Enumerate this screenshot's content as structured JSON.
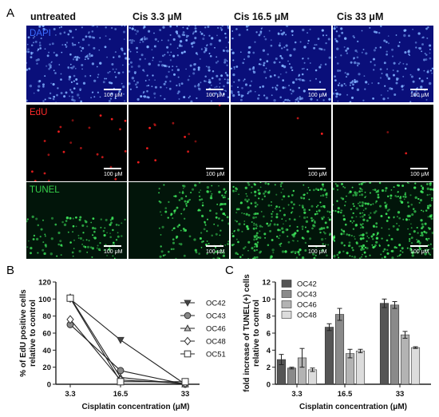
{
  "panel_labels": {
    "a": "A",
    "b": "B",
    "c": "C"
  },
  "micrograph": {
    "columns": [
      "untreated",
      "Cis 3.3 μM",
      "Cis 16.5 μM",
      "Cis 33 μM"
    ],
    "rows": [
      {
        "stain": "DAPI",
        "color": "#3b6cff",
        "bg": "#0a0f7a",
        "dot": "#7fb0ff"
      },
      {
        "stain": "EdU",
        "color": "#ff2a2a",
        "bg": "#000000",
        "dot": "#ff2020"
      },
      {
        "stain": "TUNEL",
        "color": "#37d14a",
        "bg": "#02150a",
        "dot": "#3de35a"
      }
    ],
    "scale_label": "100 μM"
  },
  "chart_data": [
    {
      "type": "line",
      "x": [
        "3.3",
        "16.5",
        "33"
      ],
      "xlabel": "Cisplatin concentration (μM)",
      "ylabel": "% of EdU positive cells relative to control",
      "ylim": [
        0,
        120
      ],
      "yticks": [
        0,
        20,
        40,
        60,
        80,
        100,
        120
      ],
      "series": [
        {
          "name": "OC42",
          "marker": "triangle-down",
          "values": [
            100,
            52,
            0
          ]
        },
        {
          "name": "OC43",
          "marker": "circle",
          "values": [
            70,
            16,
            0
          ]
        },
        {
          "name": "OC46",
          "marker": "triangle-up",
          "values": [
            102,
            8,
            0
          ]
        },
        {
          "name": "OC48",
          "marker": "diamond",
          "values": [
            76,
            5,
            1
          ]
        },
        {
          "name": "OC51",
          "marker": "square",
          "values": [
            101,
            3,
            3
          ]
        }
      ],
      "legend": "right"
    },
    {
      "type": "bar",
      "categories": [
        "3.3",
        "16.5",
        "33"
      ],
      "xlabel": "Cisplatin concentration (μM)",
      "ylabel": "fold increase of TUNEL(+) cells relative to control",
      "ylim": [
        0,
        12
      ],
      "yticks": [
        0,
        2,
        4,
        6,
        8,
        10,
        12
      ],
      "series": [
        {
          "name": "OC42",
          "color": "#555555",
          "values": [
            2.9,
            6.7,
            9.5
          ],
          "errors": [
            0.6,
            0.4,
            0.5
          ]
        },
        {
          "name": "OC43",
          "color": "#8a8a8a",
          "values": [
            1.9,
            8.2,
            9.3
          ],
          "errors": [
            0.1,
            0.7,
            0.4
          ]
        },
        {
          "name": "OC46",
          "color": "#b3b3b3",
          "values": [
            3.1,
            3.6,
            5.8
          ],
          "errors": [
            1.1,
            0.5,
            0.4
          ]
        },
        {
          "name": "OC48",
          "color": "#dcdcdc",
          "values": [
            1.7,
            3.9,
            4.3
          ],
          "errors": [
            0.2,
            0.2,
            0.1
          ]
        }
      ],
      "legend": "top-left"
    }
  ]
}
